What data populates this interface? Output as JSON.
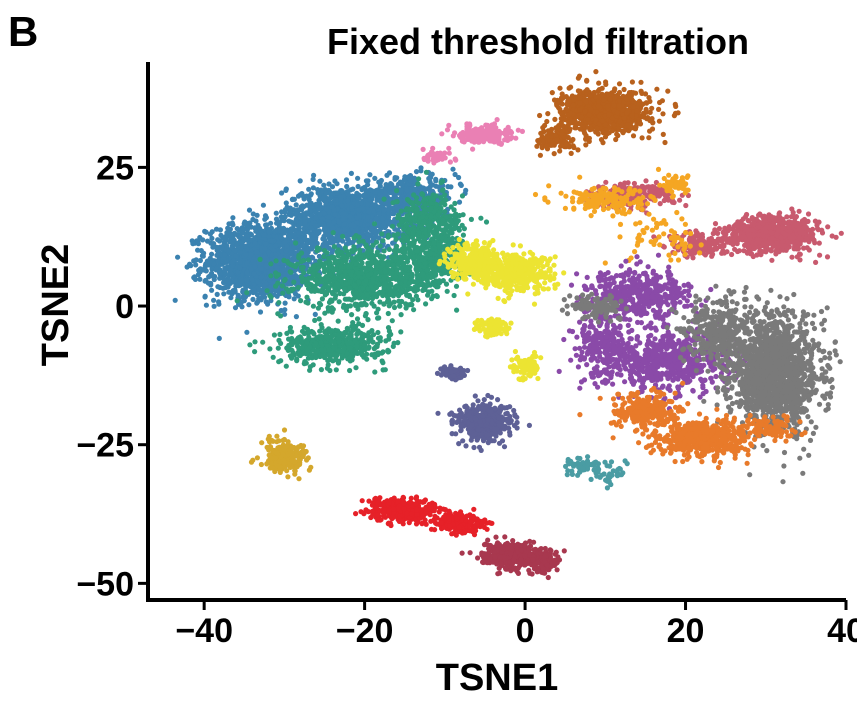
{
  "panel_label": "B",
  "chart_data": {
    "type": "scatter",
    "title": "Fixed threshold filtration",
    "xlabel": "TSNE1",
    "ylabel": "TSNE2",
    "xlim": [
      -47,
      40
    ],
    "ylim": [
      -53,
      44
    ],
    "xticks": [
      -40,
      -20,
      0,
      20,
      40
    ],
    "yticks": [
      25,
      0,
      -25,
      -50
    ],
    "xtick_labels": [
      "−40",
      "−20",
      "0",
      "20",
      "40"
    ],
    "ytick_labels": [
      "25",
      "0",
      "−25",
      "−50"
    ],
    "grid": false,
    "legend": "none",
    "point_size": 2.6,
    "clusters": [
      {
        "color": "#3b82b0",
        "parts": [
          [
            -33,
            8,
            6,
            6,
            1500
          ],
          [
            -22,
            16,
            7,
            5,
            1200
          ],
          [
            -14,
            20,
            5,
            3,
            300
          ]
        ]
      },
      {
        "color": "#2e9b7b",
        "parts": [
          [
            -20,
            5,
            8,
            5,
            900
          ],
          [
            -12,
            14,
            4,
            6,
            400
          ],
          [
            -24,
            -7,
            6,
            3,
            450
          ],
          [
            -11,
            8,
            3,
            4,
            200
          ]
        ]
      },
      {
        "color": "#ece432",
        "parts": [
          [
            -6,
            8,
            3,
            3,
            350
          ],
          [
            -1,
            6,
            4,
            3,
            400
          ],
          [
            -4,
            -4,
            2,
            1.5,
            90
          ],
          [
            0,
            -11,
            1.5,
            2,
            90
          ]
        ]
      },
      {
        "color": "#b8611d",
        "parts": [
          [
            10,
            35,
            5,
            3.5,
            900
          ],
          [
            4,
            30,
            2,
            2,
            120
          ]
        ]
      },
      {
        "color": "#ea80b4",
        "parts": [
          [
            -5,
            31,
            3,
            1.5,
            200
          ],
          [
            -11,
            27,
            2,
            1,
            40
          ]
        ]
      },
      {
        "color": "#c85a6e",
        "parts": [
          [
            31,
            13,
            5,
            3,
            700
          ],
          [
            13,
            20,
            5,
            2,
            200
          ],
          [
            22,
            11,
            4,
            2,
            150
          ]
        ]
      },
      {
        "color": "#f5a623",
        "parts": [
          [
            10,
            19,
            5,
            2,
            160
          ],
          [
            19,
            22,
            2,
            1.5,
            50
          ],
          [
            18,
            12,
            5,
            4,
            60
          ]
        ]
      },
      {
        "color": "#8a4aa8",
        "parts": [
          [
            14,
            2,
            6,
            4,
            450
          ],
          [
            18,
            -10,
            8,
            5,
            650
          ],
          [
            10,
            -7,
            3,
            5,
            200
          ]
        ]
      },
      {
        "color": "#7a7a7a",
        "parts": [
          [
            31,
            -12,
            5,
            9,
            1500
          ],
          [
            24,
            -4,
            4,
            5,
            300
          ],
          [
            9,
            0,
            3,
            2,
            100
          ]
        ]
      },
      {
        "color": "#e87a2a",
        "parts": [
          [
            22,
            -24,
            5,
            3,
            500
          ],
          [
            15,
            -19,
            4,
            3,
            250
          ],
          [
            30,
            -22,
            4,
            2,
            100
          ]
        ]
      },
      {
        "color": "#5e6196",
        "parts": [
          [
            -5,
            -21,
            3,
            3,
            450
          ],
          [
            -9,
            -12,
            1.5,
            1,
            80
          ]
        ]
      },
      {
        "color": "#d4a72c",
        "parts": [
          [
            -30,
            -27,
            2.5,
            2.5,
            250
          ]
        ]
      },
      {
        "color": "#e62128",
        "parts": [
          [
            -15,
            -37,
            4,
            2,
            350
          ],
          [
            -8,
            -39,
            3,
            1.5,
            200
          ]
        ]
      },
      {
        "color": "#a8384f",
        "parts": [
          [
            -2,
            -45,
            3,
            2,
            300
          ],
          [
            2,
            -46,
            2,
            2,
            150
          ]
        ]
      },
      {
        "color": "#4a9ca3",
        "parts": [
          [
            7,
            -29,
            1.5,
            1.5,
            40
          ],
          [
            10,
            -30,
            2,
            2,
            40
          ]
        ]
      }
    ]
  }
}
